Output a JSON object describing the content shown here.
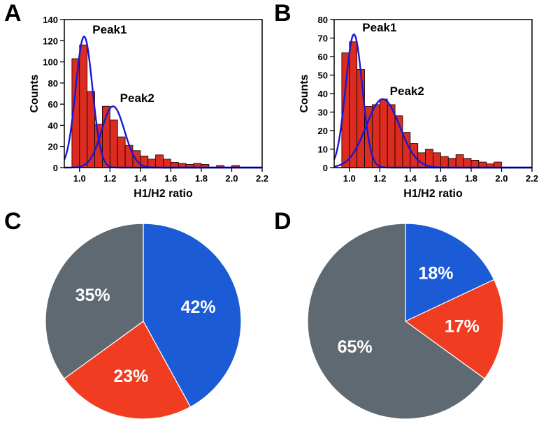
{
  "panelA": {
    "letter": "A",
    "letter_fontsize": 34,
    "type": "histogram",
    "xlabel": "H1/H2 ratio",
    "ylabel": "Counts",
    "xlabel_fontsize": 16,
    "ylabel_fontsize": 16,
    "tick_fontsize": 13,
    "peak1_label": "Peak1",
    "peak2_label": "Peak2",
    "peak_fontsize": 17,
    "xlim": [
      0.9,
      2.2
    ],
    "ylim": [
      0,
      140
    ],
    "xtick_step": 0.2,
    "ytick_step": 20,
    "bin_centers": [
      0.975,
      1.025,
      1.075,
      1.125,
      1.175,
      1.225,
      1.275,
      1.325,
      1.375,
      1.425,
      1.475,
      1.525,
      1.575,
      1.625,
      1.675,
      1.725,
      1.775,
      1.825,
      1.925,
      2.025
    ],
    "counts": [
      103,
      116,
      72,
      41,
      58,
      45,
      29,
      21,
      16,
      11,
      8,
      12,
      8,
      5,
      4,
      3,
      4,
      3,
      2,
      2
    ],
    "bar_width": 0.05,
    "bar_color": "#dc2c1f",
    "bar_edge": "#000000",
    "gauss1": {
      "mu": 1.03,
      "sigma": 0.055,
      "amp": 124
    },
    "gauss2": {
      "mu": 1.22,
      "sigma": 0.075,
      "amp": 58
    },
    "curve_color": "#1818d6",
    "curve_width": 2.4,
    "axis_color": "#000000",
    "background": "#ffffff"
  },
  "panelB": {
    "letter": "B",
    "letter_fontsize": 34,
    "type": "histogram",
    "xlabel": "H1/H2 ratio",
    "ylabel": "Counts",
    "xlabel_fontsize": 16,
    "ylabel_fontsize": 16,
    "tick_fontsize": 13,
    "peak1_label": "Peak1",
    "peak2_label": "Peak2",
    "peak_fontsize": 17,
    "xlim": [
      0.9,
      2.2
    ],
    "ylim": [
      0,
      80
    ],
    "xtick_step": 0.2,
    "ytick_step": 10,
    "bin_centers": [
      0.975,
      1.025,
      1.075,
      1.125,
      1.175,
      1.225,
      1.275,
      1.325,
      1.375,
      1.425,
      1.475,
      1.525,
      1.575,
      1.625,
      1.675,
      1.725,
      1.775,
      1.825,
      1.875,
      1.925,
      1.975
    ],
    "counts": [
      62,
      68,
      53,
      33,
      34,
      37,
      34,
      28,
      19,
      13,
      8,
      10,
      8,
      6,
      5,
      7,
      5,
      4,
      3,
      2,
      3
    ],
    "bar_width": 0.05,
    "bar_color": "#dc2c1f",
    "bar_edge": "#000000",
    "gauss1": {
      "mu": 1.03,
      "sigma": 0.055,
      "amp": 72
    },
    "gauss2": {
      "mu": 1.22,
      "sigma": 0.11,
      "amp": 37
    },
    "curve_color": "#1818d6",
    "curve_width": 2.4,
    "axis_color": "#000000",
    "background": "#ffffff"
  },
  "panelC": {
    "letter": "C",
    "letter_fontsize": 34,
    "type": "pie",
    "slices": [
      {
        "label": "42%",
        "value": 42,
        "color": "#1b5bd6",
        "text_color": "#ffffff"
      },
      {
        "label": "23%",
        "value": 23,
        "color": "#f03c21",
        "text_color": "#ffffff"
      },
      {
        "label": "35%",
        "value": 35,
        "color": "#5e6971",
        "text_color": "#ffffff"
      }
    ],
    "start_angle": -90,
    "edge_color": "#ffffff",
    "edge_width": 1.2,
    "label_fontsize": 25,
    "background": "#ffffff"
  },
  "panelD": {
    "letter": "D",
    "letter_fontsize": 34,
    "type": "pie",
    "slices": [
      {
        "label": "18%",
        "value": 18,
        "color": "#1b5bd6",
        "text_color": "#ffffff"
      },
      {
        "label": "17%",
        "value": 17,
        "color": "#f03c21",
        "text_color": "#ffffff"
      },
      {
        "label": "65%",
        "value": 65,
        "color": "#5e6971",
        "text_color": "#ffffff"
      }
    ],
    "start_angle": -90,
    "edge_color": "#ffffff",
    "edge_width": 1.2,
    "label_fontsize": 25,
    "background": "#ffffff"
  }
}
